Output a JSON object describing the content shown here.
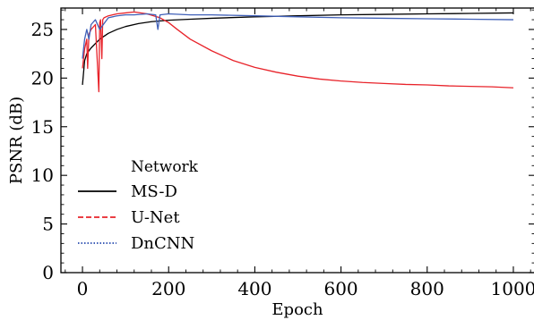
{
  "chart_data": {
    "type": "line",
    "title": "",
    "xlabel": "Epoch",
    "ylabel": "PSNR (dB)",
    "xlim": [
      -50,
      1050
    ],
    "ylim": [
      0,
      27.2
    ],
    "x_ticks": [
      0,
      200,
      400,
      600,
      800,
      1000
    ],
    "y_ticks": [
      0,
      5,
      10,
      15,
      20,
      25
    ],
    "grid": false,
    "legend": {
      "title": "Network",
      "placement": "lower-left"
    },
    "series": [
      {
        "name": "MS-D",
        "color": "#000000",
        "style": "solid",
        "x": [
          0,
          5,
          10,
          20,
          40,
          60,
          80,
          100,
          130,
          160,
          200,
          250,
          300,
          400,
          500,
          600,
          700,
          800,
          900,
          1000
        ],
        "values": [
          19.3,
          21.8,
          22.5,
          23.1,
          24.0,
          24.6,
          25.0,
          25.3,
          25.6,
          25.8,
          25.95,
          26.05,
          26.15,
          26.3,
          26.4,
          26.5,
          26.55,
          26.6,
          26.65,
          26.7
        ]
      },
      {
        "name": "U-Net",
        "color": "#e8232a",
        "style": "dashed",
        "x": [
          0,
          5,
          10,
          12,
          15,
          20,
          30,
          38,
          40,
          42,
          45,
          47,
          50,
          60,
          80,
          100,
          120,
          150,
          180,
          200,
          220,
          250,
          300,
          350,
          400,
          450,
          500,
          550,
          600,
          650,
          700,
          750,
          800,
          850,
          900,
          950,
          1000
        ],
        "values": [
          21.0,
          23.0,
          24.0,
          21.0,
          24.5,
          25.0,
          25.5,
          18.6,
          25.7,
          26.0,
          22.0,
          26.0,
          26.2,
          26.4,
          26.6,
          26.7,
          26.8,
          26.6,
          26.2,
          25.7,
          25.0,
          24.0,
          22.8,
          21.8,
          21.1,
          20.6,
          20.2,
          19.9,
          19.7,
          19.55,
          19.45,
          19.35,
          19.3,
          19.2,
          19.15,
          19.1,
          19.0
        ]
      },
      {
        "name": "DnCNN",
        "color": "#4060b8",
        "style": "dotted",
        "x": [
          0,
          5,
          10,
          15,
          20,
          30,
          40,
          60,
          80,
          100,
          120,
          150,
          170,
          175,
          180,
          200,
          250,
          300,
          400,
          500,
          600,
          700,
          800,
          900,
          1000
        ],
        "values": [
          22.0,
          24.0,
          25.0,
          24.0,
          25.5,
          26.0,
          25.0,
          26.2,
          26.4,
          26.5,
          26.5,
          26.6,
          26.5,
          25.0,
          26.5,
          26.6,
          26.5,
          26.5,
          26.4,
          26.3,
          26.2,
          26.15,
          26.1,
          26.05,
          26.0
        ]
      }
    ]
  }
}
